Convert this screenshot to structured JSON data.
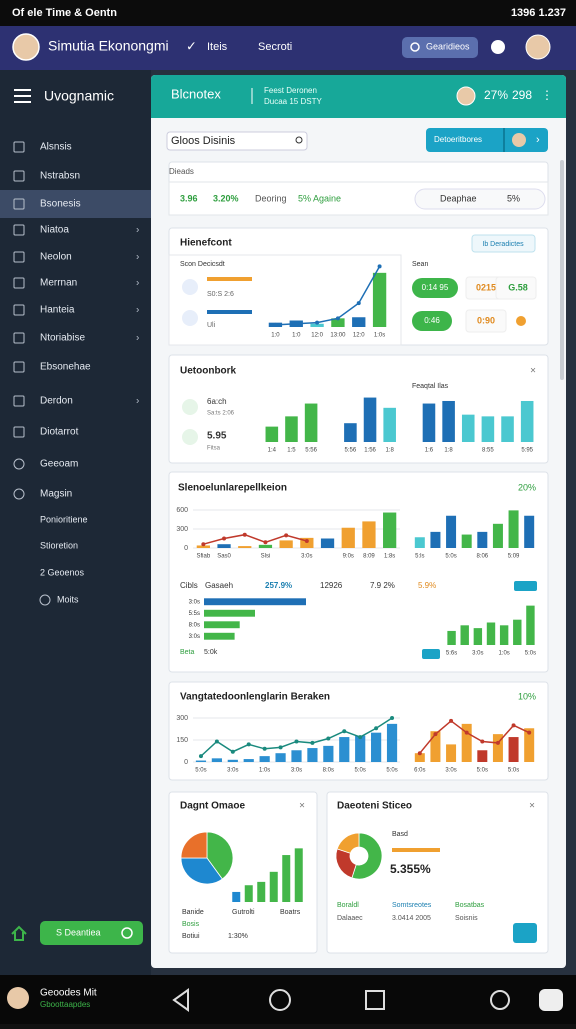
{
  "status_bar": {
    "left": "Of ele Time & Oentn",
    "right": "1396 1.237"
  },
  "app_bar": {
    "title": "Simutia Ekonongmi",
    "links": [
      "Iteis",
      "Secroti"
    ],
    "search": "Gearidieos"
  },
  "sidebar": {
    "header": "Uvognamic",
    "items": [
      "Alsnsis",
      "Nstrabsn",
      "Bsonesis",
      "Niatoa",
      "Neolon",
      "Merrnan",
      "Hanteia",
      "Ntoriabise",
      "Ebsonehae",
      "Derdon",
      "Diotarrot",
      "Geeoam",
      "Magsin",
      "Ponioritiene",
      "Stioretion",
      "2 Geoenos",
      "Moits"
    ],
    "active": 2,
    "button": "S Deantiea",
    "user": {
      "name": "Geoodes Mit",
      "sub": "Gboottaapdes"
    }
  },
  "header": {
    "title": "Blcnotex",
    "line1": "Feest Deronen",
    "line2": "Ducaa 15 DSTY",
    "stat1": "27%",
    "stat2": "298"
  },
  "search": {
    "placeholder": "Gloos Disinis",
    "button": "Detoeritbores"
  },
  "summary": {
    "label": "Dieads",
    "values": [
      "3.96",
      "3.20%",
      "Deoring",
      "5% Againe"
    ],
    "search": "Deaphae",
    "pct": "5%"
  },
  "panel1": {
    "title": "Hienefcont",
    "button": "Ib Deradictes",
    "left_label": "Scon Decicsdt",
    "row1": "S0:S 2:6",
    "row2": "Uli",
    "right_label": "Sean",
    "pills": [
      "0:14 95",
      "0215",
      "G.58",
      "0:46",
      "0:90"
    ],
    "chart": {
      "type": "bar",
      "values": [
        4,
        6,
        3,
        8,
        9,
        50
      ],
      "line": [
        2,
        3,
        4,
        8,
        22,
        56
      ],
      "ylim": [
        0,
        60
      ],
      "colors": [
        "#1e6fb5",
        "#1e6fb5",
        "#4bc8d0",
        "#43b649",
        "#1e6fb5",
        "#43b649"
      ],
      "line_color": "#1e6fb5",
      "categories": [
        "1:0",
        "1:0",
        "12:0",
        "13:00",
        "12:0",
        "1:0s"
      ]
    }
  },
  "panel2": {
    "title": "Uetoonbork",
    "sub": "Feaqtal Ilas",
    "items": [
      "6a:ch",
      "Sa:ts 2:06",
      "5.95",
      "Fitsa"
    ],
    "chart": {
      "type": "bar",
      "values": [
        18,
        30,
        45,
        0,
        22,
        52,
        40,
        0,
        45,
        48,
        32,
        30,
        30,
        48
      ],
      "ylim": [
        0,
        55
      ],
      "colors": [
        "#43b649",
        "#43b649",
        "#43b649",
        "#43b649",
        "#1e6fb5",
        "#1e6fb5",
        "#4bc8d0",
        "#4bc8d0",
        "#1e6fb5",
        "#1e6fb5",
        "#4bc8d0",
        "#4bc8d0",
        "#4bc8d0",
        "#4bc8d0"
      ],
      "categories": [
        "1:4",
        "1:5",
        "5:56",
        null,
        "5:56",
        "1:56",
        "1:8",
        null,
        "1:6",
        "1:8",
        null,
        "8:55",
        null,
        "5:95"
      ]
    }
  },
  "panel3": {
    "title": "Slenoelunlarepellkeion",
    "pct": "20%",
    "chart_a": {
      "type": "bar",
      "values": [
        40,
        60,
        30,
        50,
        120,
        160,
        150,
        320,
        420,
        560
      ],
      "line": [
        60,
        150,
        210,
        90,
        200,
        110,
        null,
        null,
        null,
        null
      ],
      "ylim": [
        0,
        600
      ],
      "yticks": [
        0,
        300,
        600
      ],
      "line_color": "#c0392b",
      "colors": [
        "#f0a030",
        "#1e6fb5",
        "#f0a030",
        "#43b649",
        "#f0a030",
        "#f0a030",
        "#1e6fb5",
        "#f0a030",
        "#f0a030",
        "#43b649"
      ],
      "categories": [
        "Sfiab",
        "Sas0",
        null,
        "Slsi",
        null,
        "3:0s",
        null,
        "9:0s",
        "8:09",
        "1:8s"
      ]
    },
    "chart_b": {
      "type": "bar",
      "values": [
        20,
        30,
        60,
        25,
        30,
        45,
        70,
        60
      ],
      "ylim": [
        0,
        80
      ],
      "colors": [
        "#4bc8d0",
        "#1e6fb5",
        "#1e6fb5",
        "#43b649",
        "#1e6fb5",
        "#43b649",
        "#43b649",
        "#1e6fb5"
      ],
      "categories": [
        "5:ls",
        null,
        "5:0s",
        null,
        "8:06",
        null,
        "5:09",
        null
      ]
    },
    "row": [
      "Cibls",
      "Gasaeh",
      "257.9%",
      "12926",
      "7.9 2%",
      "5.9%"
    ],
    "hbars": {
      "type": "hbar",
      "values": [
        100,
        50,
        35,
        30
      ],
      "xlim": [
        0,
        100
      ],
      "colors": [
        "#1e6fb5",
        "#43b649",
        "#43b649",
        "#43b649"
      ],
      "categories": [
        "3:0s",
        "5:5s",
        "8:0s",
        "3:0s"
      ]
    },
    "chart_c": {
      "type": "bar",
      "values": [
        25,
        35,
        30,
        40,
        35,
        45,
        70
      ],
      "ylim": [
        0,
        80
      ],
      "color": "#43b649",
      "categories": [
        "5:6s",
        null,
        "3:0s",
        null,
        "1:0s",
        null,
        "5:0s"
      ]
    },
    "foot": [
      "Beta",
      "5:0k"
    ]
  },
  "panel4": {
    "title": "Vangtatedoonlenglarin Beraken",
    "pct": "10%",
    "chart_a": {
      "type": "bar",
      "values": [
        10,
        25,
        15,
        20,
        40,
        60,
        80,
        95,
        110,
        170,
        180,
        200,
        260
      ],
      "line": [
        40,
        140,
        70,
        120,
        90,
        100,
        140,
        130,
        160,
        210,
        170,
        230,
        300
      ],
      "ylim": [
        0,
        300
      ],
      "yticks": [
        0,
        150,
        300
      ],
      "line_color": "#1a8a7e",
      "color": "#2b8fd1",
      "categories": [
        "5:0s",
        null,
        "3:0s",
        null,
        "1:0s",
        null,
        "3:0s",
        null,
        "8:0s",
        null,
        "5:0s",
        null,
        "5:0s"
      ]
    },
    "chart_b": {
      "type": "bar",
      "values": [
        60,
        210,
        120,
        260,
        80,
        190,
        170,
        230
      ],
      "line": [
        60,
        190,
        280,
        200,
        140,
        130,
        250,
        200
      ],
      "ylim": [
        0,
        300
      ],
      "line_color": "#c0392b",
      "colors": [
        "#f0a030",
        "#f0a030",
        "#f0a030",
        "#f0a030",
        "#c0392b",
        "#f0a030",
        "#c0392b",
        "#f0a030"
      ],
      "categories": [
        "6:0s",
        null,
        "3:0s",
        null,
        "5:0s",
        null,
        "5:0s",
        null
      ]
    }
  },
  "panel5": {
    "title": "Dagnt Omaoe",
    "pie": {
      "type": "pie",
      "values": [
        40,
        35,
        25
      ],
      "colors": [
        "#43b649",
        "#1e88d0",
        "#e8702a"
      ]
    },
    "bars": {
      "type": "bar",
      "values": [
        15,
        25,
        30,
        45,
        70,
        80
      ],
      "ylim": [
        0,
        85
      ],
      "colors": [
        "#1e88d0",
        "#43b649",
        "#43b649",
        "#43b649",
        "#43b649",
        "#43b649"
      ]
    },
    "labels": [
      "Banide",
      "Gutrolti",
      "Boatrs"
    ],
    "foot": [
      "Bosis",
      "Botiui",
      "1:30%"
    ]
  },
  "panel6": {
    "title": "Daeoteni Sticeo",
    "donut": {
      "type": "pie",
      "values": [
        55,
        25,
        20
      ],
      "colors": [
        "#43b649",
        "#c0392b",
        "#f0a030"
      ]
    },
    "legend": "Basd",
    "value": "5.355%",
    "labels": [
      "Boraldl",
      "Somtsreotes",
      "Bosatbas"
    ],
    "sublabels": [
      "Dalaaec",
      "3.0414 2005",
      "Soisnis"
    ]
  }
}
